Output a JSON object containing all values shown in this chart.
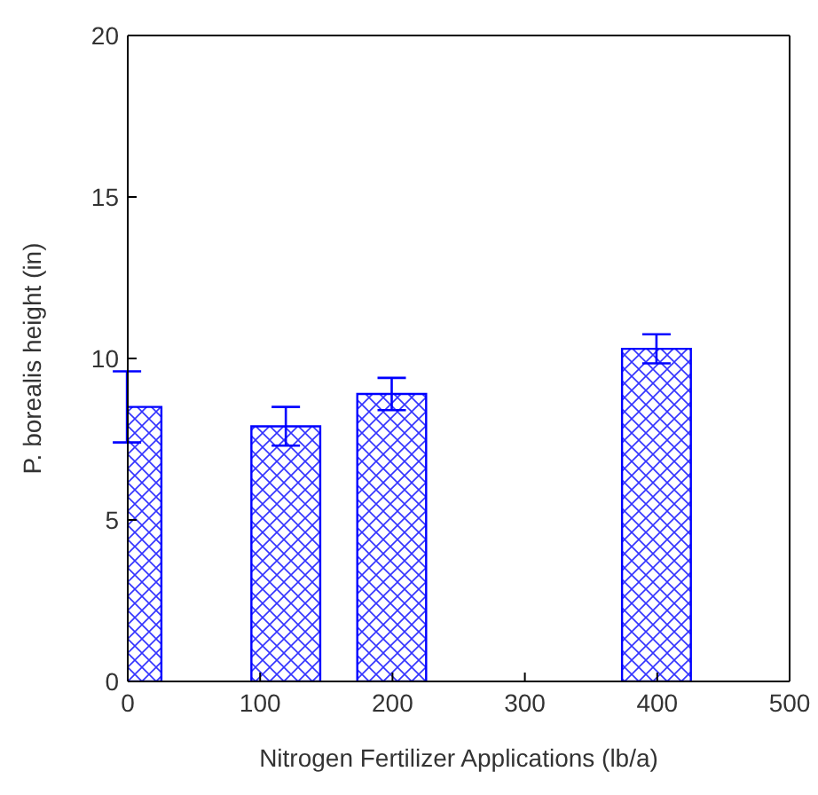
{
  "chart_data": {
    "type": "bar",
    "xlabel": "Nitrogen Fertilizer Applications (lb/a)",
    "ylabel": "P. borealis height (in)",
    "x": [
      0,
      120,
      200,
      400
    ],
    "values": [
      8.5,
      7.9,
      8.9,
      10.3
    ],
    "errors": [
      1.1,
      0.6,
      0.5,
      0.45
    ],
    "color": "#0000ff",
    "xlim": [
      0,
      500
    ],
    "xticks": [
      0,
      100,
      200,
      300,
      400,
      500
    ],
    "ylim": [
      0,
      20
    ],
    "yticks": [
      0,
      5,
      10,
      15,
      20
    ],
    "grid": false,
    "legend": false
  }
}
